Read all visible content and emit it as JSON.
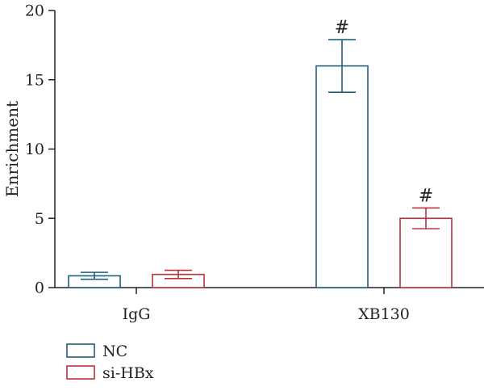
{
  "chart_data": {
    "type": "bar",
    "title": "",
    "xlabel": "",
    "ylabel": "Enrichment",
    "ylim": [
      0,
      20
    ],
    "yticks": [
      0,
      5,
      10,
      15,
      20
    ],
    "categories": [
      "IgG",
      "XB130"
    ],
    "grid": false,
    "legend_position": "bottom-left",
    "series": [
      {
        "name": "NC",
        "color": "#1f5f7a",
        "values": [
          0.85,
          16.0
        ],
        "errors": [
          0.25,
          1.9
        ],
        "significance": [
          "",
          "#"
        ]
      },
      {
        "name": "si-HBx",
        "color": "#b8333a",
        "values": [
          0.95,
          5.0
        ],
        "errors": [
          0.3,
          0.75
        ],
        "significance": [
          "",
          "#"
        ]
      }
    ]
  }
}
